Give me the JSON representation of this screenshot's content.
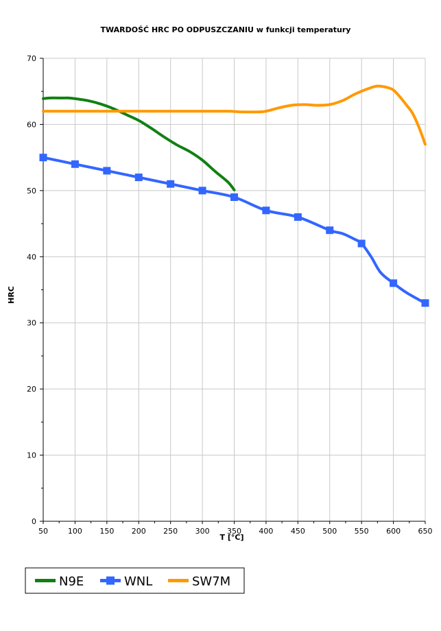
{
  "chart_data": {
    "type": "line",
    "title": "TWARDOŚĆ HRC PO ODPUSZCZANIU w funkcji temperatury",
    "xlabel": "T [°C]",
    "ylabel": "HRC",
    "xlim": [
      50,
      650
    ],
    "ylim": [
      0,
      70
    ],
    "xticks": [
      50,
      100,
      150,
      200,
      250,
      300,
      350,
      400,
      450,
      500,
      550,
      600,
      650
    ],
    "yticks": [
      0,
      10,
      20,
      30,
      40,
      50,
      60,
      70
    ],
    "grid": true,
    "legend_position": "bottom-left",
    "series": [
      {
        "name": "N9E",
        "color": "#118011",
        "marker": "none",
        "x": [
          50,
          60,
          80,
          90,
          100,
          120,
          140,
          160,
          180,
          200,
          220,
          240,
          260,
          280,
          300,
          320,
          340,
          350
        ],
        "y": [
          63.9,
          64,
          64,
          64,
          63.9,
          63.6,
          63.1,
          62.4,
          61.5,
          60.6,
          59.4,
          58.1,
          56.9,
          55.9,
          54.6,
          52.9,
          51.3,
          50.1
        ]
      },
      {
        "name": "WNL",
        "color": "#3366FF",
        "marker": "square",
        "x": [
          50,
          100,
          150,
          200,
          250,
          300,
          350,
          400,
          450,
          500,
          520,
          540,
          550,
          565,
          580,
          600,
          620,
          640,
          650
        ],
        "y": [
          55,
          54,
          53,
          52,
          51,
          50,
          49,
          47,
          46,
          44,
          43.5,
          42.6,
          42,
          40,
          37.6,
          36,
          34.6,
          33.5,
          33
        ],
        "marker_x": [
          50,
          100,
          150,
          200,
          250,
          300,
          350,
          400,
          450,
          500,
          550,
          600,
          650
        ],
        "marker_y": [
          55,
          54,
          53,
          52,
          51,
          50,
          49,
          47,
          46,
          44,
          42,
          36,
          33
        ]
      },
      {
        "name": "SW7M",
        "color": "#FF9900",
        "marker": "none",
        "x": [
          50,
          100,
          150,
          200,
          250,
          300,
          340,
          360,
          390,
          400,
          420,
          440,
          460,
          480,
          500,
          520,
          540,
          560,
          575,
          590,
          600,
          610,
          620,
          630,
          640,
          650
        ],
        "y": [
          62,
          62,
          62,
          62,
          62,
          62,
          62,
          61.9,
          61.9,
          62,
          62.5,
          62.9,
          63,
          62.9,
          63,
          63.6,
          64.6,
          65.4,
          65.8,
          65.6,
          65.2,
          64.2,
          63,
          61.7,
          59.6,
          57
        ]
      }
    ]
  }
}
